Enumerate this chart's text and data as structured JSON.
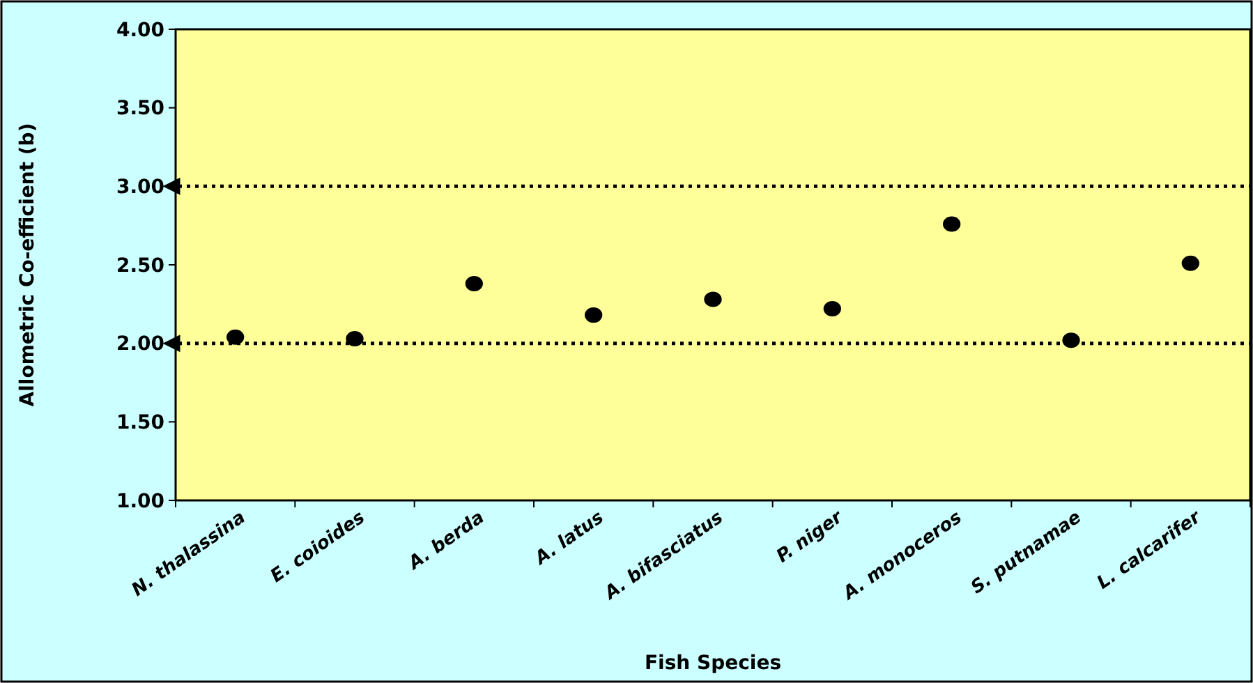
{
  "chart_data": {
    "type": "scatter",
    "xlabel": "Fish Species",
    "ylabel": "Allometric Co-efficient (b)",
    "categories": [
      "N. thalassina",
      "E. coioides",
      "A. berda",
      "A. latus",
      "A. bifasciatus",
      "P. niger",
      "A. monoceros",
      "S. putnamae",
      "L. calcarifer"
    ],
    "series": [
      {
        "color": "#000000",
        "values": [
          2.04,
          2.03,
          2.38,
          2.18,
          2.28,
          2.22,
          2.76,
          2.02,
          2.51
        ]
      }
    ],
    "ylim": [
      1,
      4
    ],
    "yticks": [
      {
        "value": 1,
        "label": "1.00"
      },
      {
        "value": 1.5,
        "label": "1.50"
      },
      {
        "value": 2,
        "label": "2.00"
      },
      {
        "value": 2.5,
        "label": "2.50"
      },
      {
        "value": 3,
        "label": "3.00"
      },
      {
        "value": 3.5,
        "label": "3.50"
      },
      {
        "value": 4,
        "label": "4.00"
      }
    ],
    "ref_lines": [
      {
        "axis": "y",
        "value": 3,
        "color": "#000000",
        "line_style": "dotted"
      },
      {
        "axis": "y",
        "value": 2,
        "color": "#000000",
        "line_style": "dotted"
      }
    ],
    "marker": "circle",
    "grid": false
  }
}
